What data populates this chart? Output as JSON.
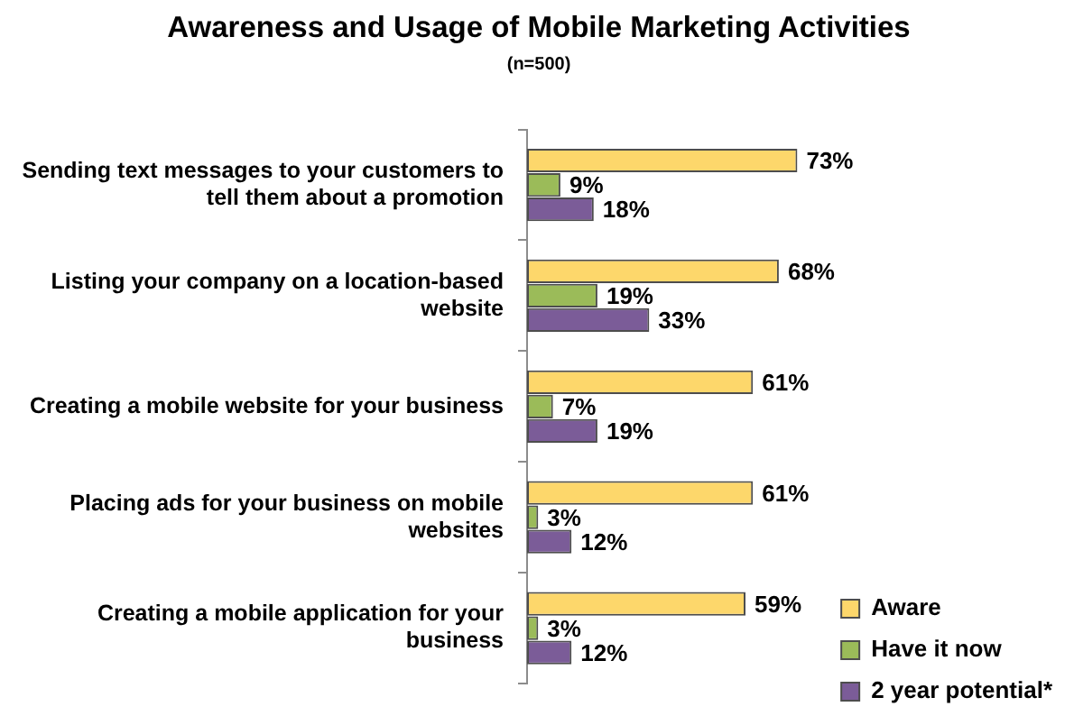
{
  "chart_data": {
    "type": "bar",
    "orientation": "horizontal",
    "title": "Awareness and Usage of Mobile Marketing Activities",
    "subtitle": "(n=500)",
    "categories": [
      "Sending text messages to your customers to tell them about a promotion",
      "Listing your company on a location-based website",
      "Creating a mobile website for your business",
      "Placing ads for your business on mobile websites",
      "Creating a mobile application for your business"
    ],
    "series": [
      {
        "name": "Aware",
        "color": "#fdd76b",
        "values": [
          73,
          68,
          61,
          61,
          59
        ],
        "value_labels": [
          "73%",
          "68%",
          "61%",
          "61%",
          "59%"
        ]
      },
      {
        "name": "Have it now",
        "color": "#9bbb59",
        "values": [
          9,
          19,
          7,
          3,
          3
        ],
        "value_labels": [
          "9%",
          "19%",
          "7%",
          "3%",
          "3%"
        ]
      },
      {
        "name": "2 year potential*",
        "color": "#7b5c98",
        "values": [
          18,
          33,
          19,
          12,
          12
        ],
        "value_labels": [
          "18%",
          "33%",
          "19%",
          "12%",
          "12%"
        ]
      }
    ],
    "tick_labels": "y",
    "legend": "bottom right"
  }
}
